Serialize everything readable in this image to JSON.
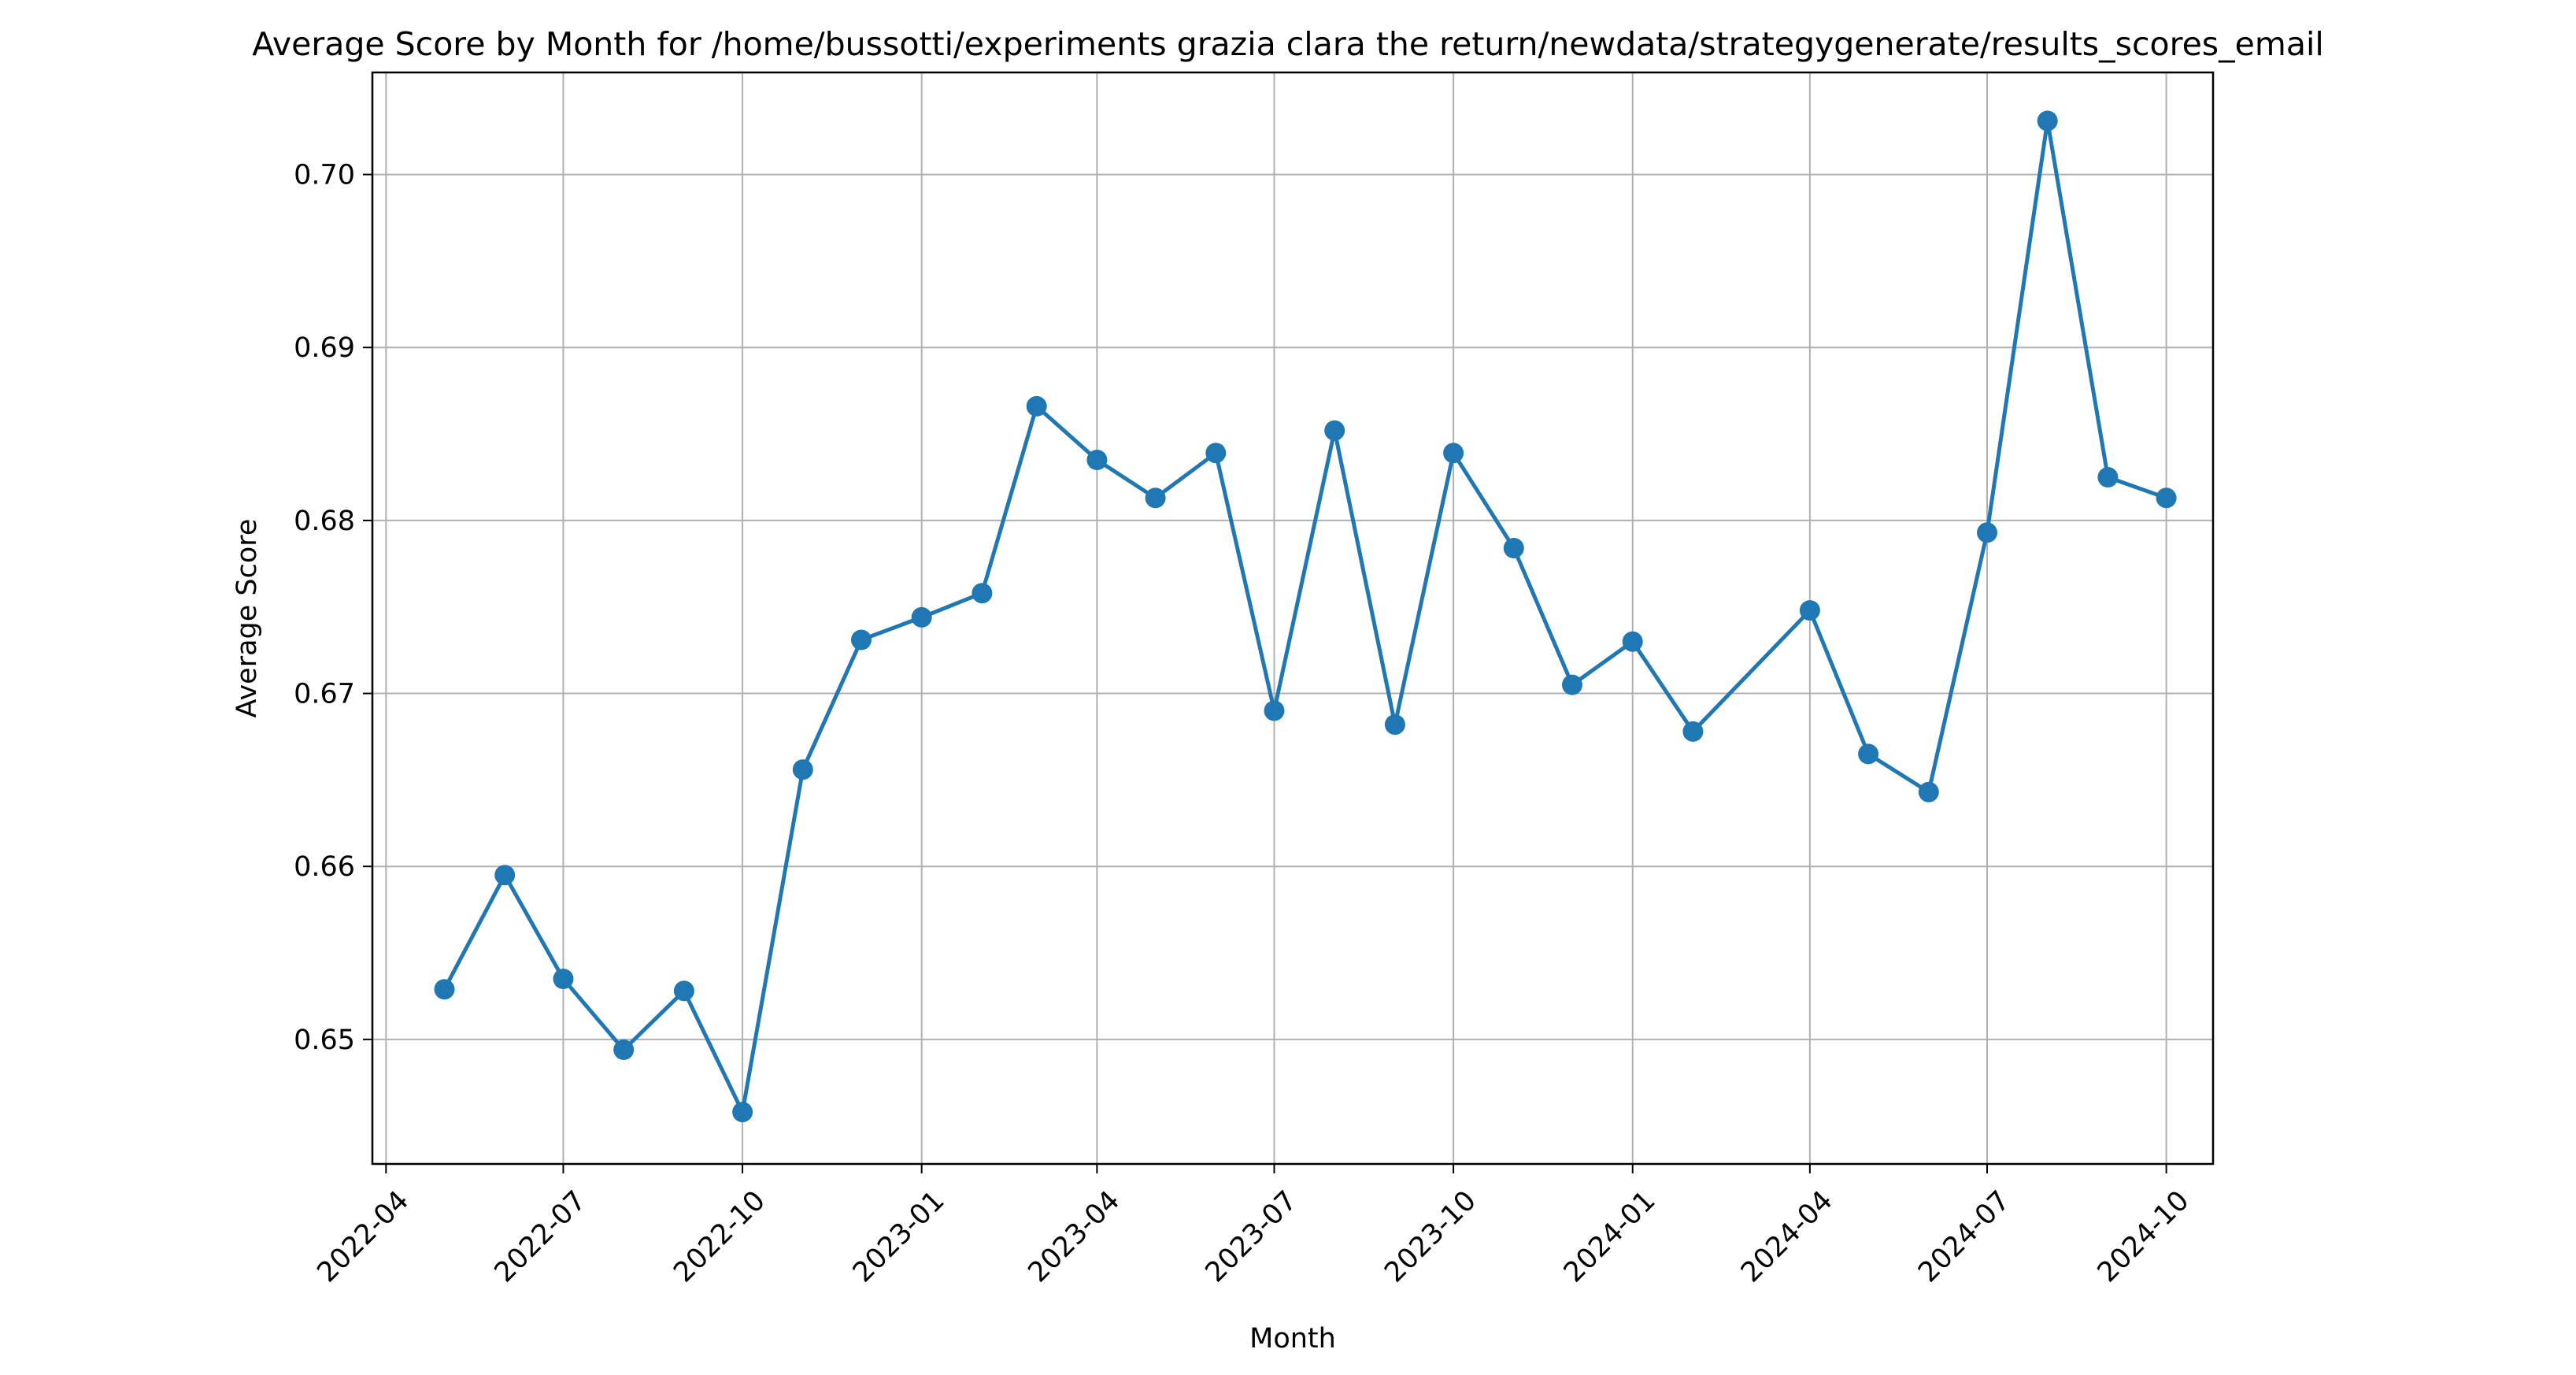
{
  "chart_data": {
    "type": "line",
    "title": "Average Score by Month for /home/bussotti/experiments grazia clara the return/newdata/strategygenerate/results_scores_email",
    "xlabel": "Month",
    "ylabel": "Average Score",
    "x_ticks": [
      "2022-04",
      "2022-07",
      "2022-10",
      "2023-01",
      "2023-04",
      "2023-07",
      "2023-10",
      "2024-01",
      "2024-04",
      "2024-07",
      "2024-10"
    ],
    "y_ticks": [
      "0.65",
      "0.66",
      "0.67",
      "0.68",
      "0.69",
      "0.70"
    ],
    "xlim": [
      "2022-03-25",
      "2024-10-25"
    ],
    "ylim": [
      0.6428,
      0.7059
    ],
    "grid": true,
    "legend": "none",
    "colors": {
      "line": "#1f77b4",
      "grid": "#b0b0b0"
    },
    "series": [
      {
        "x": [
          "2022-05",
          "2022-06",
          "2022-07",
          "2022-08",
          "2022-09",
          "2022-10",
          "2022-11",
          "2022-12",
          "2023-01",
          "2023-02",
          "2023-03",
          "2023-04",
          "2023-05",
          "2023-06",
          "2023-07",
          "2023-08",
          "2023-09",
          "2023-10",
          "2023-11",
          "2023-12",
          "2024-01",
          "2024-02",
          "2024-04",
          "2024-05",
          "2024-06",
          "2024-07",
          "2024-08",
          "2024-09",
          "2024-10"
        ],
        "values": [
          0.6529,
          0.6595,
          0.6535,
          0.6494,
          0.6528,
          0.6458,
          0.6656,
          0.6731,
          0.6744,
          0.6758,
          0.6866,
          0.6835,
          0.6813,
          0.6839,
          0.669,
          0.6852,
          0.6682,
          0.6839,
          0.6784,
          0.6705,
          0.673,
          0.6678,
          0.6748,
          0.6665,
          0.6643,
          0.6793,
          0.7031,
          0.6825,
          0.6813
        ]
      }
    ]
  }
}
